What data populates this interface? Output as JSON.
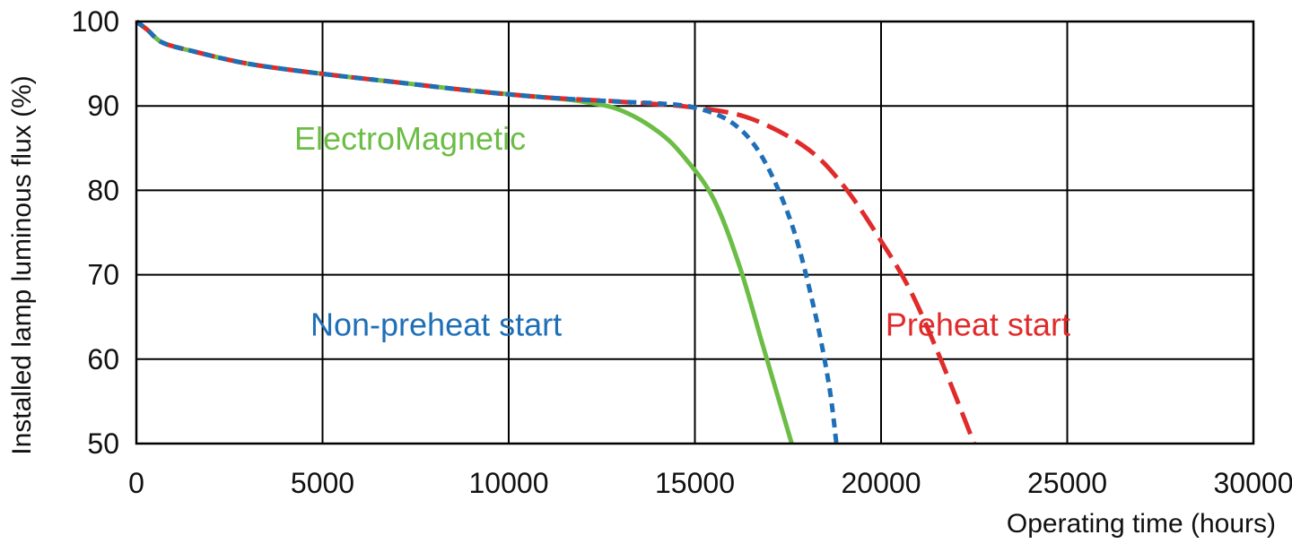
{
  "chart_data": {
    "type": "line",
    "title": "",
    "xlabel": "Operating time (hours)",
    "ylabel": "Installed lamp luminous flux  (%)",
    "xlim": [
      0,
      30000
    ],
    "ylim": [
      50,
      100
    ],
    "xticks": [
      0,
      5000,
      10000,
      15000,
      20000,
      25000,
      30000
    ],
    "yticks": [
      50,
      60,
      70,
      80,
      90,
      100
    ],
    "grid": true,
    "series": [
      {
        "name": "ElectroMagnetic",
        "color": "#6cbd45",
        "style": "solid",
        "x": [
          0,
          300,
          700,
          1500,
          3000,
          5000,
          7000,
          9000,
          11000,
          12000,
          13000,
          14000,
          14700,
          15500,
          16200,
          16800,
          17200,
          17600
        ],
        "y": [
          100,
          99,
          97.5,
          96.5,
          95,
          93.8,
          92.8,
          91.8,
          91.0,
          90.5,
          89.5,
          87,
          84,
          79,
          71,
          62,
          56,
          50
        ]
      },
      {
        "name": "Non-preheat start",
        "color": "#1f6fb7",
        "style": "dashed",
        "x": [
          0,
          300,
          700,
          1500,
          3000,
          5000,
          7000,
          9000,
          11000,
          13000,
          14000,
          15000,
          16000,
          16800,
          17600,
          18200,
          18600,
          18800
        ],
        "y": [
          100,
          99,
          97.5,
          96.5,
          95,
          93.8,
          92.8,
          91.8,
          91.0,
          90.5,
          90.3,
          89.8,
          88,
          84,
          76,
          66,
          57,
          50
        ]
      },
      {
        "name": "Preheat start",
        "color": "#e02b2b",
        "style": "longdash",
        "x": [
          0,
          300,
          700,
          1500,
          3000,
          5000,
          7000,
          9000,
          11000,
          13000,
          15000,
          16500,
          18000,
          19000,
          20000,
          20800,
          21600,
          22500
        ],
        "y": [
          100,
          99,
          97.5,
          96.5,
          95,
          93.8,
          92.8,
          91.8,
          91.0,
          90.5,
          89.8,
          88.5,
          85,
          80.5,
          74,
          68,
          60,
          50
        ]
      }
    ],
    "annotations": [
      {
        "text": "ElectroMagnetic",
        "color": "#6cbd45",
        "x": 7350,
        "y": 84.8
      },
      {
        "text": "Non-preheat start",
        "color": "#1f6fb7",
        "x": 8050,
        "y": 62.8
      },
      {
        "text": "Preheat start",
        "color": "#e02b2b",
        "x": 22600,
        "y": 62.8
      }
    ]
  }
}
